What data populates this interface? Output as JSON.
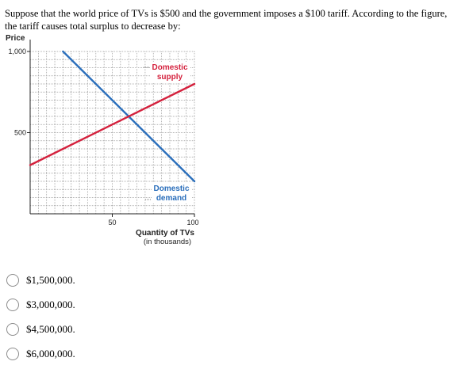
{
  "question": {
    "text": "Suppose that the world price of TVs is $500 and the government imposes a $100 tariff. According to the figure, the tariff causes total surplus to decrease by:"
  },
  "chart_data": {
    "type": "line",
    "ylabel": "Price",
    "xlabel_line1": "Quantity of TVs",
    "xlabel_line2": "(in thousands)",
    "xlim": [
      0,
      100
    ],
    "ylim": [
      0,
      1000
    ],
    "x_ticks": [
      {
        "value": 50,
        "label": "50"
      },
      {
        "value": 100,
        "label": "100"
      }
    ],
    "y_ticks": [
      {
        "value": 500,
        "label": "500"
      },
      {
        "value": 1000,
        "label": "1,000"
      }
    ],
    "grid": true,
    "grid_x_step": 5,
    "grid_y_step": 50,
    "series": [
      {
        "key": "demand",
        "label_line1": "Domestic",
        "label_line2": "demand",
        "color": "#2a6ebb",
        "points": [
          [
            20,
            1000
          ],
          [
            100,
            200
          ]
        ]
      },
      {
        "key": "supply",
        "label_line1": "Domestic",
        "label_line2": "supply",
        "color": "#d4213d",
        "points": [
          [
            0,
            300
          ],
          [
            100,
            800
          ]
        ]
      }
    ]
  },
  "options": [
    {
      "label": "$1,500,000."
    },
    {
      "label": "$3,000,000."
    },
    {
      "label": "$4,500,000."
    },
    {
      "label": "$6,000,000."
    }
  ]
}
